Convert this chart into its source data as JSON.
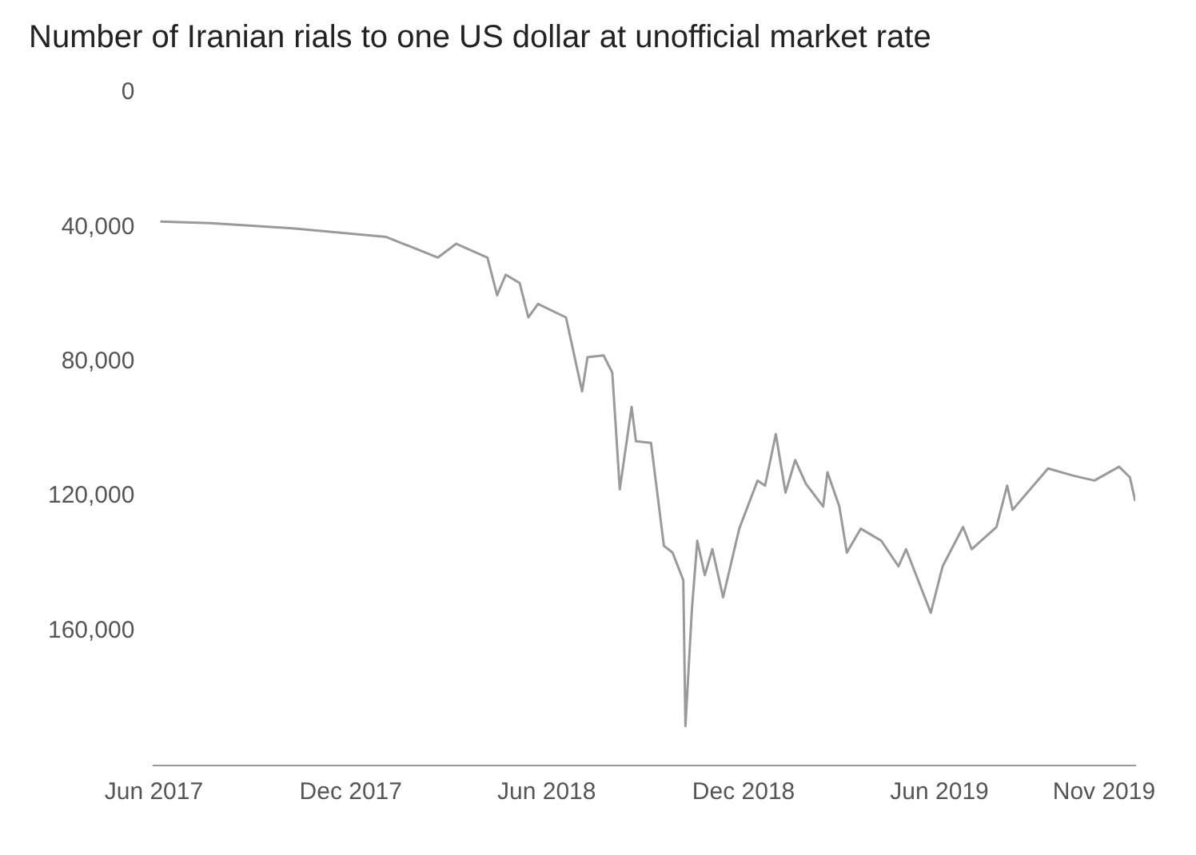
{
  "chart_data": {
    "type": "line",
    "title": "Number of Iranian rials to one US dollar at unofficial market rate",
    "x": [
      "2017-06-07",
      "2017-07-24",
      "2017-10-08",
      "2018-01-03",
      "2018-02-20",
      "2018-03-09",
      "2018-04-07",
      "2018-04-16",
      "2018-04-24",
      "2018-05-07",
      "2018-05-15",
      "2018-05-24",
      "2018-06-19",
      "2018-07-04",
      "2018-07-09",
      "2018-07-24",
      "2018-08-01",
      "2018-08-08",
      "2018-08-19",
      "2018-08-23",
      "2018-09-06",
      "2018-09-18",
      "2018-09-26",
      "2018-10-06",
      "2018-10-08",
      "2018-10-14",
      "2018-10-19",
      "2018-10-26",
      "2018-11-02",
      "2018-11-12",
      "2018-11-27",
      "2018-12-14",
      "2018-12-21",
      "2018-12-31",
      "2019-01-09",
      "2019-01-18",
      "2019-01-28",
      "2019-02-13",
      "2019-02-17",
      "2019-02-28",
      "2019-03-07",
      "2019-03-20",
      "2019-04-08",
      "2019-04-24",
      "2019-05-01",
      "2019-05-24",
      "2019-06-04",
      "2019-06-23",
      "2019-07-01",
      "2019-07-24",
      "2019-08-03",
      "2019-08-08",
      "2019-09-10",
      "2019-10-03",
      "2019-10-23",
      "2019-11-15",
      "2019-11-25",
      "2019-11-30"
    ],
    "series": [
      {
        "color": "#9a9a9a",
        "values": [
          38300,
          38800,
          40300,
          42900,
          49000,
          44900,
          49000,
          60200,
          54100,
          56600,
          66800,
          62800,
          66800,
          88800,
          78600,
          78100,
          83200,
          117900,
          93400,
          103600,
          104100,
          134700,
          136700,
          144900,
          188300,
          153600,
          133200,
          143400,
          135700,
          150000,
          129600,
          115300,
          116800,
          101500,
          118900,
          109200,
          116300,
          123000,
          112800,
          123000,
          136700,
          129600,
          133200,
          140800,
          135700,
          154600,
          140800,
          129100,
          135700,
          129100,
          116800,
          124000,
          111700,
          113800,
          115300,
          111200,
          114300,
          121400
        ]
      }
    ],
    "xlim": [
      "2017-06-01",
      "2019-11-30"
    ],
    "xticks": [
      {
        "value": "2017-06-01",
        "label": "Jun 2017"
      },
      {
        "value": "2017-12-01",
        "label": "Dec 2017"
      },
      {
        "value": "2018-06-01",
        "label": "Jun 2018"
      },
      {
        "value": "2018-12-01",
        "label": "Dec 2018"
      },
      {
        "value": "2019-06-01",
        "label": "Jun 2019"
      },
      {
        "value": "2019-11-01",
        "label": "Nov 2019"
      }
    ],
    "ylim": [
      200000,
      0
    ],
    "yticks": [
      0,
      {
        "value": 40000,
        "label": "40,000"
      },
      {
        "value": 80000,
        "label": "80,000"
      },
      {
        "value": 120000,
        "label": "120,000"
      },
      {
        "value": 160000,
        "label": "160,000"
      }
    ],
    "grid": false,
    "legend": false,
    "marker": "none",
    "line_style": "solid"
  }
}
